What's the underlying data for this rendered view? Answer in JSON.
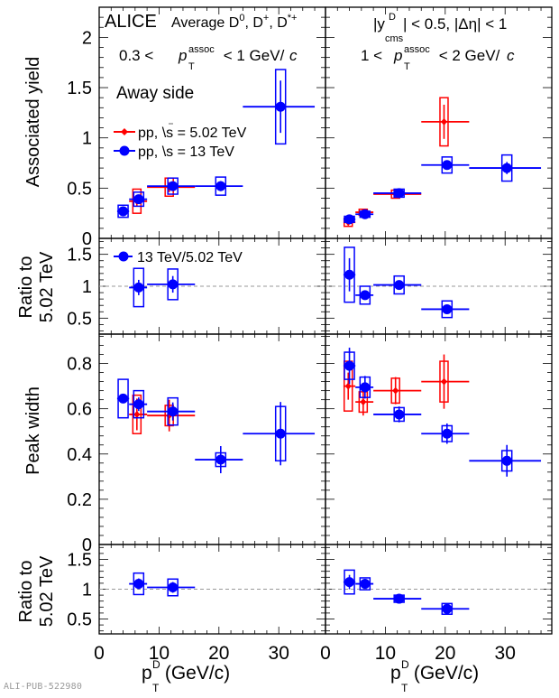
{
  "watermark": "ALI-PUB-522980",
  "chart_data": {
    "type": "scatter",
    "figure_title": "ALICE",
    "annotations": {
      "left": [
        "ALICE",
        "Average D0, D+, D*+",
        "0.3 < pT^assoc < 1 GeV/c",
        "Away side"
      ],
      "right": [
        "|y^D_cms| < 0.5, |Δη| < 1",
        "1 < pT^assoc < 2 GeV/c"
      ]
    },
    "legend": {
      "main": [
        {
          "name": "pp, √s = 5.02 TeV",
          "color": "#ff0000",
          "marker": "diamond"
        },
        {
          "name": "pp, √s = 13 TeV",
          "color": "#0000ff",
          "marker": "circle"
        }
      ],
      "ratio": [
        {
          "name": "13 TeV/5.02 TeV",
          "color": "#0000ff",
          "marker": "circle"
        }
      ],
      "placement": "top-left"
    },
    "xlabel": "pT^D (GeV/c)",
    "xlim": [
      0,
      37.8
    ],
    "xticks": [
      0,
      10,
      20,
      30
    ],
    "columns": [
      "0.3 < pT^assoc < 1 GeV/c",
      "1 < pT^assoc < 2 GeV/c"
    ],
    "rows": [
      {
        "ylabel": "Associated yield",
        "ylim": [
          0,
          2.3
        ],
        "yticks": [
          0,
          0.5,
          1,
          1.5,
          2
        ],
        "panels": [
          {
            "series": [
              {
                "name": "pp, √s = 5.02 TeV",
                "color": "#ff0000",
                "points": [
                  {
                    "x": 6.3,
                    "xlo": 5,
                    "xhi": 8,
                    "y": 0.37,
                    "stat": 0.05,
                    "syst": 0.12
                  },
                  {
                    "x": 11.7,
                    "xlo": 8,
                    "xhi": 16,
                    "y": 0.51,
                    "stat": 0.05,
                    "syst": 0.09
                  }
                ]
              },
              {
                "name": "pp, √s = 13 TeV",
                "color": "#0000ff",
                "points": [
                  {
                    "x": 4.0,
                    "xlo": 3,
                    "xhi": 5,
                    "y": 0.27,
                    "stat": 0.03,
                    "syst": 0.06
                  },
                  {
                    "x": 6.6,
                    "xlo": 5,
                    "xhi": 8,
                    "y": 0.39,
                    "stat": 0.04,
                    "syst": 0.07
                  },
                  {
                    "x": 12.3,
                    "xlo": 8,
                    "xhi": 16,
                    "y": 0.52,
                    "stat": 0.04,
                    "syst": 0.08
                  },
                  {
                    "x": 20.3,
                    "xlo": 16,
                    "xhi": 24,
                    "y": 0.52,
                    "stat": 0.05,
                    "syst": 0.09
                  },
                  {
                    "x": 30.3,
                    "xlo": 24,
                    "xhi": 36,
                    "y": 1.31,
                    "stat": 0.26,
                    "syst": 0.37
                  }
                ]
              }
            ]
          },
          {
            "series": [
              {
                "name": "pp, √s = 5.02 TeV",
                "color": "#ff0000",
                "points": [
                  {
                    "x": 3.8,
                    "xlo": 3,
                    "xhi": 5,
                    "y": 0.16,
                    "stat": 0.02,
                    "syst": 0.04
                  },
                  {
                    "x": 6.3,
                    "xlo": 5,
                    "xhi": 8,
                    "y": 0.26,
                    "stat": 0.02,
                    "syst": 0.03
                  },
                  {
                    "x": 11.7,
                    "xlo": 8,
                    "xhi": 16,
                    "y": 0.44,
                    "stat": 0.03,
                    "syst": 0.04
                  },
                  {
                    "x": 19.8,
                    "xlo": 16,
                    "xhi": 24,
                    "y": 1.16,
                    "stat": 0.17,
                    "syst": 0.24
                  }
                ]
              },
              {
                "name": "pp, √s = 13 TeV",
                "color": "#0000ff",
                "points": [
                  {
                    "x": 4.0,
                    "xlo": 3,
                    "xhi": 5,
                    "y": 0.19,
                    "stat": 0.02,
                    "syst": 0.03
                  },
                  {
                    "x": 6.6,
                    "xlo": 5,
                    "xhi": 8,
                    "y": 0.24,
                    "stat": 0.02,
                    "syst": 0.03
                  },
                  {
                    "x": 12.3,
                    "xlo": 8,
                    "xhi": 16,
                    "y": 0.45,
                    "stat": 0.02,
                    "syst": 0.04
                  },
                  {
                    "x": 20.3,
                    "xlo": 16,
                    "xhi": 24,
                    "y": 0.73,
                    "stat": 0.03,
                    "syst": 0.08
                  },
                  {
                    "x": 30.3,
                    "xlo": 24,
                    "xhi": 36,
                    "y": 0.7,
                    "stat": 0.06,
                    "syst": 0.13
                  }
                ]
              }
            ]
          }
        ]
      },
      {
        "ylabel": "Ratio to 5.02 TeV",
        "ylim": [
          0.25,
          1.75
        ],
        "yticks": [
          0.5,
          1,
          1.5
        ],
        "reference_line": 1,
        "panels": [
          {
            "series": [
              {
                "name": "13 TeV/5.02 TeV",
                "color": "#0000ff",
                "points": [
                  {
                    "x": 6.6,
                    "xlo": 5,
                    "xhi": 8,
                    "y": 0.98,
                    "stat": 0.12,
                    "syst": 0.3
                  },
                  {
                    "x": 12.3,
                    "xlo": 8,
                    "xhi": 16,
                    "y": 1.03,
                    "stat": 0.13,
                    "syst": 0.24
                  }
                ]
              }
            ]
          },
          {
            "series": [
              {
                "name": "13 TeV/5.02 TeV",
                "color": "#0000ff",
                "points": [
                  {
                    "x": 4.0,
                    "xlo": 3,
                    "xhi": 5,
                    "y": 1.18,
                    "stat": 0.26,
                    "syst": 0.43
                  },
                  {
                    "x": 6.6,
                    "xlo": 5,
                    "xhi": 8,
                    "y": 0.86,
                    "stat": 0.07,
                    "syst": 0.14
                  },
                  {
                    "x": 12.3,
                    "xlo": 8,
                    "xhi": 16,
                    "y": 1.02,
                    "stat": 0.07,
                    "syst": 0.14
                  },
                  {
                    "x": 20.3,
                    "xlo": 16,
                    "xhi": 24,
                    "y": 0.64,
                    "stat": 0.07,
                    "syst": 0.13
                  }
                ]
              }
            ]
          }
        ]
      },
      {
        "ylabel": "Peak width",
        "ylim": [
          0,
          0.93
        ],
        "yticks": [
          0,
          0.2,
          0.4,
          0.6,
          0.8
        ],
        "panels": [
          {
            "series": [
              {
                "name": "pp, √s = 5.02 TeV",
                "color": "#ff0000",
                "points": [
                  {
                    "x": 6.3,
                    "xlo": 5,
                    "xhi": 8,
                    "y": 0.575,
                    "stat": 0.07,
                    "syst": 0.085
                  },
                  {
                    "x": 11.7,
                    "xlo": 8,
                    "xhi": 16,
                    "y": 0.57,
                    "stat": 0.07,
                    "syst": 0.045
                  }
                ]
              },
              {
                "name": "pp, √s = 13 TeV",
                "color": "#0000ff",
                "points": [
                  {
                    "x": 4.0,
                    "xlo": 3,
                    "xhi": 5,
                    "y": 0.645,
                    "stat": 0.02,
                    "syst": 0.085
                  },
                  {
                    "x": 6.6,
                    "xlo": 5,
                    "xhi": 8,
                    "y": 0.62,
                    "stat": 0.03,
                    "syst": 0.06
                  },
                  {
                    "x": 12.3,
                    "xlo": 8,
                    "xhi": 16,
                    "y": 0.588,
                    "stat": 0.04,
                    "syst": 0.06
                  },
                  {
                    "x": 20.3,
                    "xlo": 16,
                    "xhi": 24,
                    "y": 0.375,
                    "stat": 0.06,
                    "syst": 0.03
                  },
                  {
                    "x": 30.3,
                    "xlo": 24,
                    "xhi": 36,
                    "y": 0.49,
                    "stat": 0.14,
                    "syst": 0.12
                  }
                ]
              }
            ]
          },
          {
            "series": [
              {
                "name": "pp, √s = 5.02 TeV",
                "color": "#ff0000",
                "points": [
                  {
                    "x": 3.8,
                    "xlo": 3,
                    "xhi": 5,
                    "y": 0.7,
                    "stat": 0.06,
                    "syst": 0.11
                  },
                  {
                    "x": 6.3,
                    "xlo": 5,
                    "xhi": 8,
                    "y": 0.63,
                    "stat": 0.06,
                    "syst": 0.045
                  },
                  {
                    "x": 11.7,
                    "xlo": 8,
                    "xhi": 16,
                    "y": 0.68,
                    "stat": 0.06,
                    "syst": 0.055
                  },
                  {
                    "x": 19.8,
                    "xlo": 16,
                    "xhi": 24,
                    "y": 0.72,
                    "stat": 0.12,
                    "syst": 0.09
                  }
                ]
              },
              {
                "name": "pp, √s = 13 TeV",
                "color": "#0000ff",
                "points": [
                  {
                    "x": 4.0,
                    "xlo": 3,
                    "xhi": 5,
                    "y": 0.79,
                    "stat": 0.08,
                    "syst": 0.06
                  },
                  {
                    "x": 6.6,
                    "xlo": 5,
                    "xhi": 8,
                    "y": 0.695,
                    "stat": 0.05,
                    "syst": 0.045
                  },
                  {
                    "x": 12.3,
                    "xlo": 8,
                    "xhi": 16,
                    "y": 0.575,
                    "stat": 0.035,
                    "syst": 0.03
                  },
                  {
                    "x": 20.3,
                    "xlo": 16,
                    "xhi": 24,
                    "y": 0.49,
                    "stat": 0.045,
                    "syst": 0.035
                  },
                  {
                    "x": 30.3,
                    "xlo": 24,
                    "xhi": 36,
                    "y": 0.37,
                    "stat": 0.07,
                    "syst": 0.045
                  }
                ]
              }
            ]
          }
        ]
      },
      {
        "ylabel": "Ratio to 5.02 TeV",
        "ylim": [
          0.25,
          1.75
        ],
        "yticks": [
          0.5,
          1,
          1.5
        ],
        "reference_line": 1,
        "panels": [
          {
            "series": [
              {
                "name": "13 TeV/5.02 TeV",
                "color": "#0000ff",
                "points": [
                  {
                    "x": 6.6,
                    "xlo": 5,
                    "xhi": 8,
                    "y": 1.09,
                    "stat": 0.09,
                    "syst": 0.18
                  },
                  {
                    "x": 12.3,
                    "xlo": 8,
                    "xhi": 16,
                    "y": 1.03,
                    "stat": 0.09,
                    "syst": 0.14
                  }
                ]
              }
            ]
          },
          {
            "series": [
              {
                "name": "13 TeV/5.02 TeV",
                "color": "#0000ff",
                "points": [
                  {
                    "x": 4.0,
                    "xlo": 3,
                    "xhi": 5,
                    "y": 1.12,
                    "stat": 0.12,
                    "syst": 0.2
                  },
                  {
                    "x": 6.6,
                    "xlo": 5,
                    "xhi": 8,
                    "y": 1.09,
                    "stat": 0.08,
                    "syst": 0.1
                  },
                  {
                    "x": 12.3,
                    "xlo": 8,
                    "xhi": 16,
                    "y": 0.84,
                    "stat": 0.04,
                    "syst": 0.06
                  },
                  {
                    "x": 20.3,
                    "xlo": 16,
                    "xhi": 24,
                    "y": 0.67,
                    "stat": 0.08,
                    "syst": 0.09
                  }
                ]
              }
            ]
          }
        ]
      }
    ]
  },
  "labels": {
    "alice": "ALICE",
    "average_prefix": "Average D",
    "average_d0_sup": "0",
    "average_mid1": ", D",
    "average_dplus_sup": "+",
    "average_mid2": ", D",
    "average_dstar_sup": "*+",
    "left_pt_lo": "0.3 < ",
    "left_pt_hi": " < 1 GeV/",
    "right_pt_lo": "1 < ",
    "right_pt_hi": " < 2 GeV/",
    "p": "p",
    "assoc": "assoc",
    "T": "T",
    "c": "c",
    "away_side": "Away side",
    "rapidity_y": "|y",
    "rapidity_sup": "D",
    "rapidity_sub": "cms",
    "rapidity_rest": "| < 0.5, |Δη| < 1",
    "legend_502": "pp, \\s = 5.02 TeV",
    "legend_13": "pp, \\s = 13 TeV",
    "legend_ratio": "13 TeV/5.02 TeV",
    "ylabel_yield": "Associated yield",
    "ylabel_ratio_l1": "Ratio to",
    "ylabel_ratio_l2": "5.02 TeV",
    "ylabel_width": "Peak width",
    "xlabel_p": "p",
    "xlabel_sup": "D",
    "xlabel_sub": "T",
    "xlabel_rest": " (GeV/c)"
  }
}
